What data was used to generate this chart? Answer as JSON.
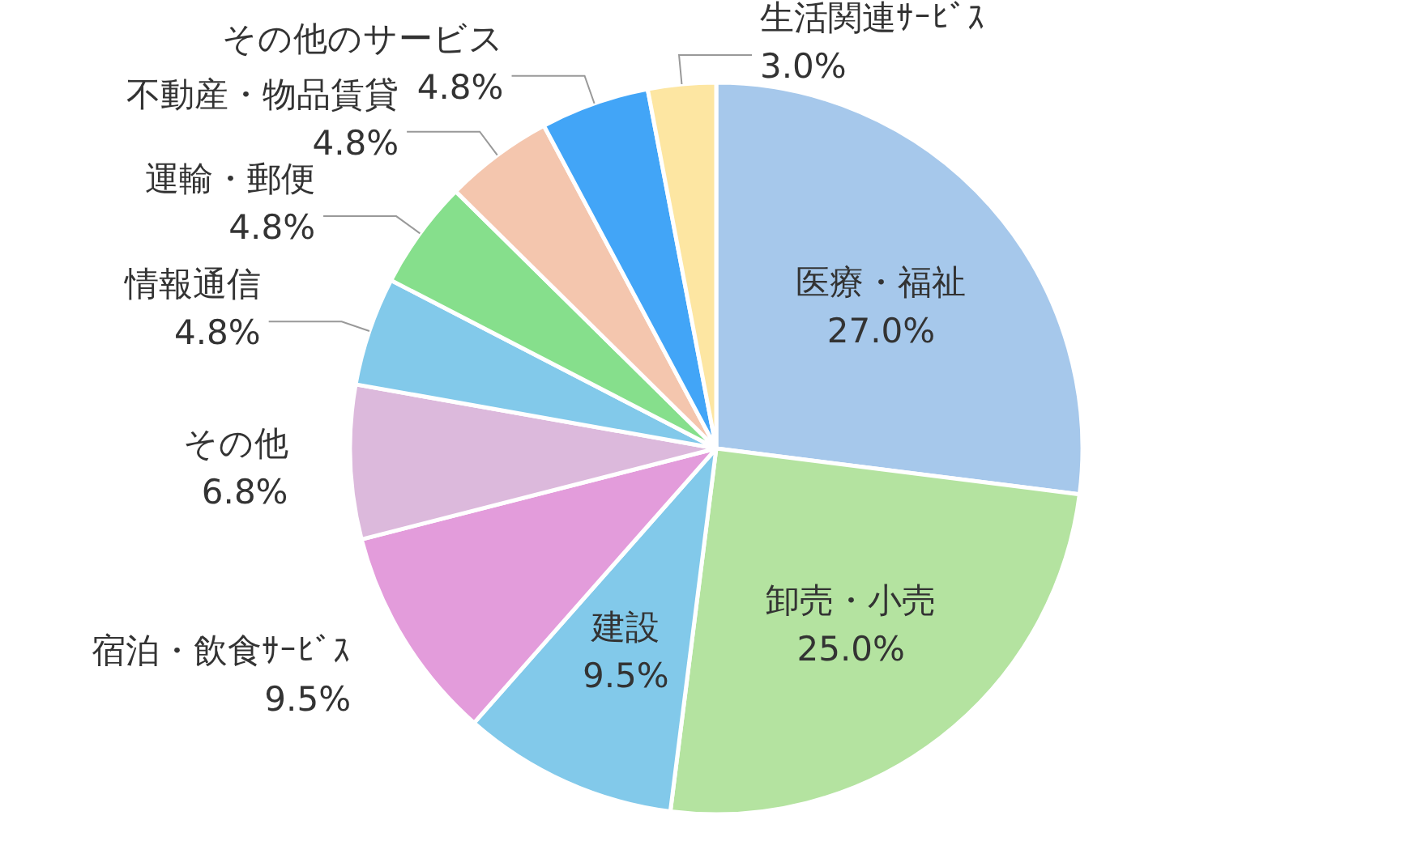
{
  "chart_data": {
    "type": "pie",
    "categories": [
      "医療・福祉",
      "卸売・小売",
      "建設",
      "宿泊・飲食ｻｰﾋﾞｽ",
      "その他",
      "情報通信",
      "運輸・郵便",
      "不動産・物品賃貸",
      "その他のサービス",
      "生活関連ｻｰﾋﾞｽ"
    ],
    "values": [
      27.0,
      25.0,
      9.5,
      9.5,
      6.8,
      4.8,
      4.8,
      4.8,
      4.8,
      3.0
    ],
    "value_labels": [
      "27.0%",
      "25.0%",
      "9.5%",
      "9.5%",
      "6.8%",
      "4.8%",
      "4.8%",
      "4.8%",
      "4.8%",
      "3.0%"
    ],
    "colors": [
      "#a6c8eb",
      "#b4e3a0",
      "#82c9ea",
      "#e39cdb",
      "#dcb9dc",
      "#82c9ea",
      "#86df8c",
      "#f4c6ae",
      "#42a5f7",
      "#fde6a2"
    ]
  }
}
